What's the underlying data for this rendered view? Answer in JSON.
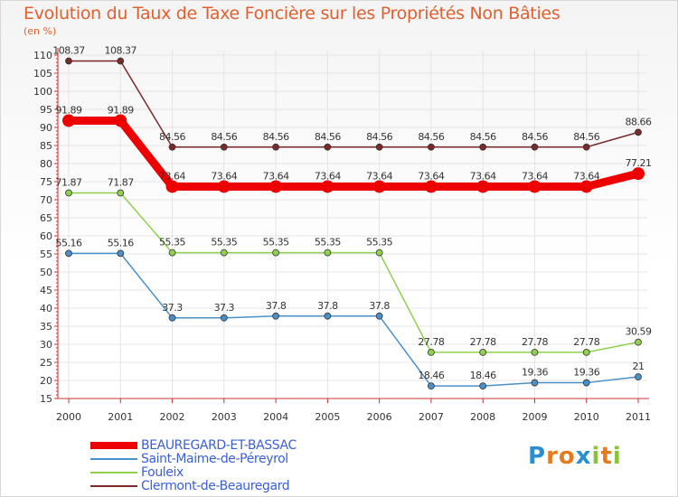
{
  "title": "Evolution du Taux de Taxe Foncière sur les Propriétés Non Bâties",
  "unit_label": "(en %)",
  "logo": {
    "text": "Proxiti",
    "letters": [
      "P",
      "r",
      "o",
      "x",
      "i",
      "t",
      "i"
    ],
    "colors": [
      "#2a8fd0",
      "#e87a1e",
      "#e87a1e",
      "#2a8fd0",
      "#8ac23c",
      "#e87a1e",
      "#8ac23c"
    ]
  },
  "chart_data": {
    "type": "line",
    "title": "Evolution du Taux de Taxe Foncière sur les Propriétés Non Bâties",
    "ylabel": "(en %)",
    "xlabel": "",
    "ylim": [
      15,
      110
    ],
    "yticks": [
      "15",
      "20",
      "25",
      "30",
      "35",
      "40",
      "45",
      "50",
      "55",
      "60",
      "65",
      "70",
      "75",
      "80",
      "85",
      "90",
      "95",
      "100",
      "105",
      "110"
    ],
    "categories": [
      "2000",
      "2001",
      "2002",
      "2003",
      "2004",
      "2005",
      "2006",
      "2007",
      "2008",
      "2009",
      "2010",
      "2011"
    ],
    "legend_position": "bottom-left",
    "series": [
      {
        "name": "Clermont-de-Beauregard",
        "color": "#7a2a2a",
        "values": [
          108.37,
          108.37,
          84.56,
          84.56,
          84.56,
          84.56,
          84.56,
          84.56,
          84.56,
          84.56,
          84.56,
          88.66
        ],
        "labels": [
          "108.37",
          "108.37",
          "84.56",
          "84.56",
          "84.56",
          "84.56",
          "84.56",
          "84.56",
          "84.56",
          "84.56",
          "84.56",
          "88.66"
        ]
      },
      {
        "name": "BEAUREGARD-ET-BASSAC",
        "color": "#ee0000",
        "values": [
          91.89,
          91.89,
          73.64,
          73.64,
          73.64,
          73.64,
          73.64,
          73.64,
          73.64,
          73.64,
          73.64,
          77.21
        ],
        "labels": [
          "91.89",
          "91.89",
          "73.64",
          "73.64",
          "73.64",
          "73.64",
          "73.64",
          "73.64",
          "73.64",
          "73.64",
          "73.64",
          "77.21"
        ]
      },
      {
        "name": "Fouleix",
        "color": "#8fd14f",
        "values": [
          71.87,
          71.87,
          55.35,
          55.35,
          55.35,
          55.35,
          55.35,
          27.78,
          27.78,
          27.78,
          27.78,
          30.59
        ],
        "labels": [
          "71.87",
          "71.87",
          "55.35",
          "55.35",
          "55.35",
          "55.35",
          "55.35",
          "27.78",
          "27.78",
          "27.78",
          "27.78",
          "30.59"
        ]
      },
      {
        "name": "Saint-Maime-de-Péreyrol",
        "color": "#4a90c8",
        "values": [
          55.16,
          55.16,
          37.3,
          37.3,
          37.8,
          37.8,
          37.8,
          18.46,
          18.46,
          19.36,
          19.36,
          21
        ],
        "labels": [
          "55.16",
          "55.16",
          "37.3",
          "37.3",
          "37.8",
          "37.8",
          "37.8",
          "18.46",
          "18.46",
          "19.36",
          "19.36",
          "21"
        ]
      }
    ]
  },
  "legend": [
    {
      "label": "BEAUREGARD-ET-BASSAC",
      "color": "#ee0000",
      "text_color": "#3a5fd9"
    },
    {
      "label": "Saint-Maime-de-Péreyrol",
      "color": "#4a90c8",
      "text_color": "#3a5fd9"
    },
    {
      "label": "Fouleix",
      "color": "#8fd14f",
      "text_color": "#3a5fd9"
    },
    {
      "label": "Clermont-de-Beauregard",
      "color": "#7a2a2a",
      "text_color": "#3a5fd9"
    }
  ]
}
